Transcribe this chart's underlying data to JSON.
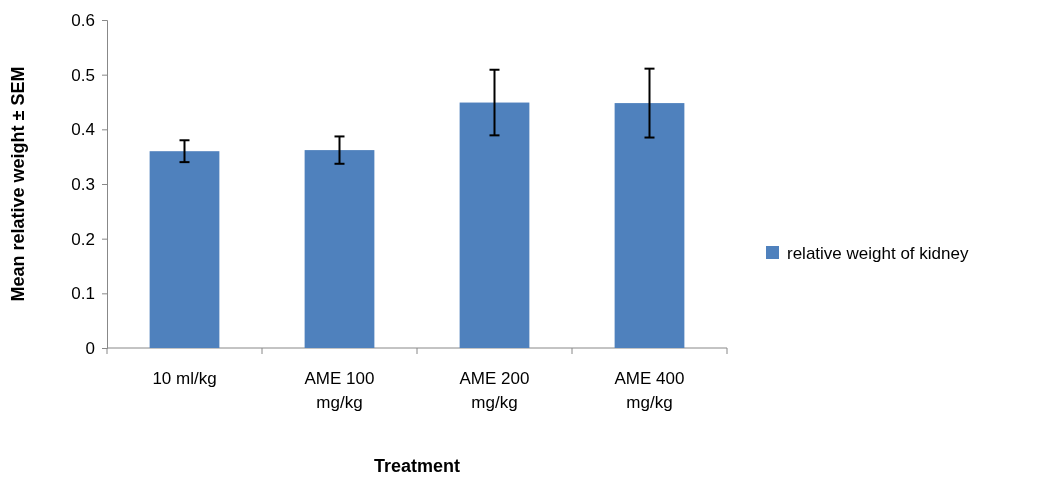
{
  "chart_data": {
    "type": "bar",
    "xlabel": "Treatment",
    "ylabel": "Mean relative weight ± SEM",
    "categories": [
      "10 ml/kg",
      "AME 100 mg/kg",
      "AME 200 mg/kg",
      "AME 400 mg/kg"
    ],
    "series": [
      {
        "name": "relative weight of kidney",
        "color": "#4f81bd",
        "values": [
          0.36,
          0.362,
          0.449,
          0.448
        ],
        "errors": [
          0.02,
          0.025,
          0.06,
          0.063
        ]
      }
    ],
    "ylim": [
      0,
      0.6
    ],
    "yticks": [
      0,
      0.1,
      0.2,
      0.3,
      0.4,
      0.5,
      0.6
    ],
    "legend": "right",
    "grid": false
  }
}
